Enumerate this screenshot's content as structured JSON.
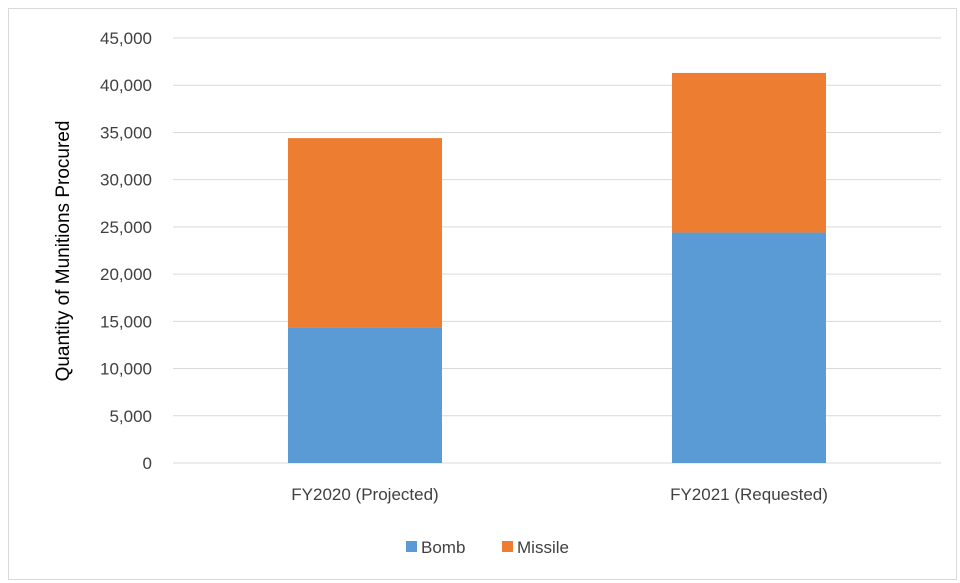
{
  "chart_data": {
    "type": "bar",
    "stacked": true,
    "categories": [
      "FY2020 (Projected)",
      "FY2021 (Requested)"
    ],
    "series": [
      {
        "name": "Bomb",
        "color": "#5b9bd5",
        "values": [
          14300,
          24400
        ]
      },
      {
        "name": "Missile",
        "color": "#ed7d31",
        "values": [
          20100,
          16900
        ]
      }
    ],
    "title": "",
    "xlabel": "",
    "ylabel": "Quantity of Munitions Procured",
    "ylim": [
      0,
      45000
    ],
    "yticks": [
      "0",
      "5,000",
      "10,000",
      "15,000",
      "20,000",
      "25,000",
      "30,000",
      "35,000",
      "40,000",
      "45,000"
    ],
    "grid": true,
    "legend_position": "bottom"
  }
}
